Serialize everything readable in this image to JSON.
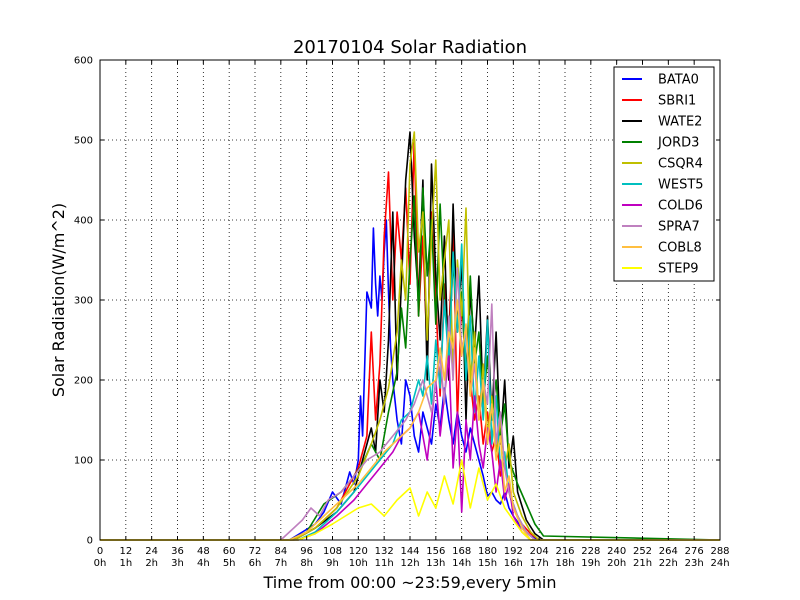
{
  "chart_data": {
    "type": "line",
    "title": "20170104 Solar Radiation",
    "xlabel": "Time from 00:00 ~23:59,every 5min",
    "ylabel": "Solar Radiation(W/m^2)",
    "xlim": [
      0,
      288
    ],
    "ylim": [
      0,
      600
    ],
    "grid": true,
    "grid_style": "dotted",
    "legend_position": "top-right",
    "yticks": [
      0,
      100,
      200,
      300,
      400,
      500,
      600
    ],
    "xticks": [
      0,
      12,
      24,
      36,
      48,
      60,
      72,
      84,
      96,
      108,
      120,
      132,
      144,
      156,
      168,
      180,
      192,
      204,
      216,
      228,
      240,
      252,
      264,
      276,
      288
    ],
    "xtick_labels": [
      "0\n0h",
      "12\n1h",
      "24\n2h",
      "36\n3h",
      "48\n4h",
      "60\n5h",
      "72\n6h",
      "84\n7h",
      "96\n8h",
      "108\n9h",
      "120\n10h",
      "132\n11h",
      "144\n12h",
      "156\n13h",
      "168\n14h",
      "180\n15h",
      "192\n16h",
      "204\n17h",
      "216\n18h",
      "228\n19h",
      "240\n20h",
      "252\n21h",
      "264\n22h",
      "276\n23h",
      "288\n24h"
    ],
    "series": [
      {
        "name": "BATA0",
        "color": "#0000ff",
        "x": [
          0,
          88,
          94,
          100,
          104,
          108,
          112,
          116,
          118,
          120,
          121,
          122,
          124,
          126,
          127,
          128,
          129,
          130,
          131,
          132,
          133,
          134,
          135,
          136,
          138,
          140,
          142,
          144,
          146,
          148,
          150,
          152,
          154,
          156,
          158,
          160,
          162,
          164,
          166,
          168,
          170,
          172,
          174,
          176,
          178,
          180,
          182,
          184,
          186,
          188,
          190,
          192,
          196,
          200,
          204,
          288
        ],
        "y": [
          0,
          0,
          10,
          20,
          35,
          60,
          45,
          85,
          70,
          100,
          180,
          130,
          310,
          290,
          390,
          320,
          280,
          330,
          300,
          360,
          400,
          310,
          240,
          200,
          150,
          120,
          200,
          180,
          130,
          110,
          160,
          140,
          120,
          170,
          140,
          190,
          150,
          120,
          160,
          130,
          110,
          140,
          120,
          100,
          80,
          55,
          60,
          50,
          45,
          60,
          40,
          30,
          15,
          5,
          0,
          0
        ]
      },
      {
        "name": "SBRI1",
        "color": "#ff0000",
        "x": [
          0,
          90,
          100,
          110,
          116,
          120,
          124,
          126,
          128,
          130,
          132,
          134,
          136,
          138,
          140,
          142,
          144,
          146,
          148,
          150,
          152,
          154,
          156,
          158,
          160,
          162,
          164,
          166,
          168,
          170,
          172,
          174,
          176,
          178,
          180,
          182,
          184,
          186,
          188,
          190,
          192,
          196,
          200,
          204,
          288
        ],
        "y": [
          0,
          0,
          15,
          40,
          70,
          90,
          130,
          260,
          150,
          220,
          380,
          460,
          300,
          410,
          350,
          440,
          320,
          500,
          280,
          380,
          230,
          410,
          300,
          180,
          320,
          250,
          400,
          150,
          300,
          220,
          200,
          150,
          180,
          120,
          160,
          110,
          130,
          80,
          100,
          60,
          40,
          20,
          8,
          0,
          0
        ]
      },
      {
        "name": "WATE2",
        "color": "#000000",
        "x": [
          0,
          90,
          100,
          110,
          118,
          122,
          126,
          128,
          130,
          132,
          134,
          136,
          138,
          140,
          142,
          144,
          146,
          148,
          150,
          152,
          154,
          156,
          158,
          160,
          162,
          164,
          166,
          168,
          170,
          172,
          174,
          176,
          178,
          180,
          182,
          184,
          186,
          188,
          190,
          192,
          194,
          198,
          202,
          206,
          288
        ],
        "y": [
          0,
          0,
          15,
          35,
          60,
          100,
          140,
          110,
          200,
          160,
          250,
          410,
          200,
          320,
          450,
          510,
          380,
          300,
          450,
          200,
          470,
          330,
          250,
          380,
          200,
          420,
          260,
          350,
          150,
          310,
          240,
          330,
          170,
          280,
          150,
          260,
          120,
          200,
          90,
          130,
          60,
          25,
          8,
          0,
          0
        ]
      },
      {
        "name": "JORD3",
        "color": "#008000",
        "x": [
          0,
          88,
          96,
          104,
          112,
          118,
          122,
          126,
          130,
          134,
          138,
          140,
          142,
          144,
          146,
          148,
          150,
          152,
          154,
          156,
          158,
          160,
          162,
          164,
          166,
          168,
          170,
          172,
          174,
          176,
          178,
          180,
          182,
          184,
          186,
          188,
          190,
          194,
          198,
          202,
          206,
          288
        ],
        "y": [
          0,
          0,
          10,
          45,
          60,
          80,
          95,
          120,
          100,
          160,
          210,
          290,
          240,
          350,
          430,
          280,
          440,
          330,
          400,
          270,
          420,
          300,
          230,
          350,
          260,
          310,
          200,
          330,
          220,
          260,
          170,
          230,
          150,
          200,
          130,
          170,
          100,
          70,
          45,
          20,
          5,
          0
        ]
      },
      {
        "name": "CSQR4",
        "color": "#bfbf00",
        "x": [
          0,
          90,
          100,
          110,
          120,
          126,
          130,
          134,
          138,
          140,
          142,
          144,
          146,
          148,
          150,
          152,
          154,
          156,
          158,
          160,
          162,
          164,
          166,
          168,
          170,
          172,
          174,
          176,
          178,
          180,
          182,
          184,
          186,
          188,
          190,
          192,
          196,
          200,
          204,
          288
        ],
        "y": [
          0,
          0,
          15,
          40,
          80,
          120,
          150,
          190,
          260,
          350,
          300,
          470,
          510,
          360,
          410,
          250,
          380,
          475,
          300,
          350,
          400,
          210,
          350,
          280,
          415,
          200,
          260,
          150,
          220,
          130,
          180,
          110,
          150,
          90,
          120,
          60,
          30,
          10,
          0,
          0
        ]
      },
      {
        "name": "WEST5",
        "color": "#00bfbf",
        "x": [
          0,
          92,
          100,
          110,
          118,
          124,
          130,
          136,
          140,
          144,
          148,
          150,
          152,
          154,
          156,
          158,
          160,
          162,
          164,
          166,
          168,
          170,
          172,
          174,
          176,
          178,
          180,
          182,
          184,
          186,
          188,
          190,
          194,
          198,
          202,
          288
        ],
        "y": [
          0,
          0,
          10,
          35,
          60,
          80,
          100,
          120,
          150,
          160,
          200,
          180,
          230,
          170,
          250,
          190,
          300,
          220,
          360,
          260,
          370,
          200,
          280,
          160,
          230,
          150,
          275,
          120,
          180,
          90,
          110,
          60,
          30,
          10,
          0,
          0
        ]
      },
      {
        "name": "COLD6",
        "color": "#bf00bf",
        "x": [
          0,
          92,
          100,
          110,
          118,
          124,
          130,
          136,
          140,
          144,
          148,
          152,
          154,
          156,
          158,
          160,
          162,
          164,
          166,
          168,
          170,
          172,
          174,
          176,
          178,
          180,
          182,
          184,
          186,
          188,
          190,
          192,
          196,
          200,
          288
        ],
        "y": [
          0,
          0,
          8,
          30,
          50,
          70,
          90,
          110,
          130,
          140,
          160,
          100,
          150,
          200,
          130,
          180,
          230,
          90,
          160,
          35,
          150,
          100,
          180,
          120,
          90,
          140,
          110,
          60,
          100,
          50,
          70,
          30,
          10,
          0,
          0
        ]
      },
      {
        "name": "SPRA7",
        "color": "#bf80bf",
        "x": [
          0,
          84,
          90,
          94,
          98,
          102,
          106,
          112,
          118,
          124,
          130,
          136,
          142,
          146,
          150,
          154,
          158,
          160,
          162,
          164,
          166,
          168,
          170,
          172,
          174,
          176,
          178,
          180,
          182,
          184,
          186,
          188,
          190,
          194,
          198,
          202,
          288
        ],
        "y": [
          0,
          0,
          15,
          25,
          40,
          30,
          50,
          60,
          80,
          100,
          110,
          130,
          150,
          170,
          200,
          160,
          230,
          170,
          280,
          200,
          340,
          240,
          260,
          180,
          220,
          150,
          200,
          170,
          295,
          120,
          160,
          90,
          60,
          30,
          10,
          0,
          0
        ]
      },
      {
        "name": "COBL8",
        "color": "#ffbf40",
        "x": [
          0,
          88,
          96,
          104,
          112,
          120,
          126,
          132,
          138,
          144,
          148,
          152,
          156,
          158,
          160,
          162,
          164,
          166,
          168,
          170,
          172,
          174,
          176,
          178,
          180,
          182,
          184,
          186,
          188,
          190,
          192,
          196,
          200,
          288
        ],
        "y": [
          0,
          0,
          10,
          30,
          50,
          70,
          90,
          110,
          125,
          140,
          160,
          190,
          200,
          240,
          200,
          260,
          240,
          300,
          230,
          270,
          180,
          240,
          150,
          200,
          120,
          170,
          100,
          130,
          60,
          80,
          40,
          15,
          0,
          0
        ]
      },
      {
        "name": "STEP9",
        "color": "#ffff00",
        "x": [
          0,
          92,
          100,
          108,
          114,
          120,
          126,
          132,
          138,
          144,
          148,
          152,
          156,
          160,
          164,
          168,
          172,
          176,
          180,
          184,
          188,
          192,
          196,
          200,
          288
        ],
        "y": [
          0,
          0,
          8,
          20,
          30,
          40,
          45,
          30,
          50,
          65,
          30,
          60,
          40,
          80,
          45,
          100,
          40,
          90,
          50,
          70,
          40,
          25,
          10,
          0,
          0
        ]
      }
    ]
  }
}
